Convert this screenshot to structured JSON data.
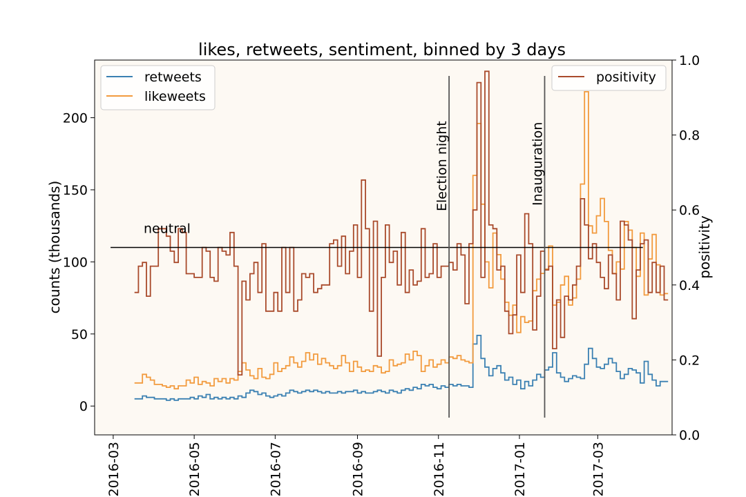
{
  "chart_data": {
    "type": "line",
    "title": "likes, retweets, sentiment, binned by 3 days",
    "ylabel": "counts (thousands)",
    "y2label": "positivity",
    "x_ticks": [
      "2016-03",
      "2016-05",
      "2016-07",
      "2016-09",
      "2016-11",
      "2017-01",
      "2017-03"
    ],
    "y_ticks": [
      "0",
      "50",
      "100",
      "150",
      "200"
    ],
    "y2_ticks": [
      "0.0",
      "0.2",
      "0.4",
      "0.6",
      "0.8",
      "1.0"
    ],
    "ylim": [
      -20,
      240
    ],
    "y2lim": [
      0.0,
      1.0
    ],
    "xlim": [
      "2016-02-16",
      "2017-04-26"
    ],
    "grid": false,
    "background": "#fdf9f3",
    "legend_left": {
      "position": "top-left",
      "entries": [
        "retweets",
        "likeweets"
      ]
    },
    "legend_right": {
      "position": "top-right",
      "entries": [
        "positivity"
      ]
    },
    "neutral_line": {
      "value": 0.5,
      "label": "neutral",
      "x_start": "2016-02-28",
      "x_end": "2017-04-04"
    },
    "events": [
      {
        "label": "Election night",
        "date": "2016-11-09"
      },
      {
        "label": "Inauguration",
        "date": "2017-01-20"
      }
    ],
    "x_start": "2016-03-17",
    "bin_days": 3,
    "series": [
      {
        "name": "retweets",
        "axis": "left",
        "color": "#3a80b2",
        "values": [
          5,
          5,
          7,
          6,
          6,
          5,
          5,
          5,
          4,
          5,
          4,
          5,
          5,
          5,
          6,
          5,
          7,
          6,
          8,
          5,
          6,
          5,
          6,
          5,
          6,
          5,
          7,
          6,
          9,
          11,
          10,
          8,
          9,
          7,
          6,
          7,
          8,
          7,
          9,
          11,
          10,
          9,
          10,
          11,
          10,
          11,
          10,
          9,
          10,
          9,
          9,
          10,
          9,
          10,
          10,
          11,
          9,
          10,
          9,
          9,
          10,
          11,
          10,
          9,
          11,
          10,
          9,
          11,
          12,
          11,
          13,
          12,
          15,
          14,
          15,
          13,
          12,
          14,
          13,
          15,
          14,
          15,
          14,
          14,
          13,
          43,
          49,
          33,
          27,
          21,
          26,
          28,
          23,
          18,
          20,
          15,
          18,
          12,
          17,
          14,
          18,
          22,
          20,
          25,
          27,
          37,
          23,
          20,
          17,
          19,
          21,
          20,
          19,
          29,
          40,
          33,
          27,
          26,
          29,
          33,
          30,
          24,
          19,
          22,
          26,
          25,
          23,
          16,
          31,
          22,
          18,
          14,
          17,
          17
        ]
      },
      {
        "name": "likeweets",
        "axis": "left",
        "color": "#f29a3d",
        "values": [
          16,
          16,
          22,
          20,
          18,
          15,
          15,
          14,
          13,
          14,
          12,
          14,
          14,
          18,
          16,
          20,
          15,
          17,
          16,
          14,
          19,
          17,
          19,
          16,
          19,
          18,
          24,
          30,
          25,
          21,
          19,
          26,
          20,
          19,
          22,
          30,
          24,
          26,
          28,
          34,
          30,
          27,
          31,
          37,
          32,
          36,
          29,
          33,
          30,
          28,
          26,
          28,
          35,
          30,
          24,
          31,
          27,
          24,
          25,
          24,
          28,
          27,
          23,
          24,
          32,
          28,
          29,
          30,
          36,
          32,
          38,
          35,
          24,
          28,
          32,
          27,
          29,
          32,
          30,
          34,
          33,
          35,
          32,
          31,
          30,
          160,
          196,
          140,
          100,
          82,
          120,
          105,
          88,
          72,
          63,
          70,
          51,
          62,
          58,
          59,
          80,
          88,
          92,
          95,
          111,
          70,
          72,
          84,
          90,
          70,
          75,
          88,
          154,
          218,
          125,
          120,
          132,
          144,
          128,
          108,
          92,
          100,
          95,
          128,
          122,
          110,
          90,
          120,
          77,
          102,
          119,
          98,
          77,
          78
        ]
      },
      {
        "name": "positivity",
        "axis": "right",
        "color": "#a94a2b",
        "values": [
          0.38,
          0.45,
          0.46,
          0.37,
          0.45,
          0.45,
          0.55,
          0.55,
          0.53,
          0.49,
          0.46,
          0.55,
          0.54,
          0.43,
          0.43,
          0.42,
          0.42,
          0.5,
          0.49,
          0.42,
          0.41,
          0.5,
          0.49,
          0.48,
          0.54,
          0.45,
          0.16,
          0.41,
          0.36,
          0.43,
          0.46,
          0.38,
          0.51,
          0.33,
          0.33,
          0.38,
          0.33,
          0.5,
          0.38,
          0.5,
          0.33,
          0.36,
          0.43,
          0.42,
          0.43,
          0.38,
          0.39,
          0.4,
          0.4,
          0.51,
          0.52,
          0.45,
          0.53,
          0.43,
          0.49,
          0.56,
          0.42,
          0.68,
          0.55,
          0.33,
          0.57,
          0.21,
          0.42,
          0.56,
          0.46,
          0.49,
          0.4,
          0.54,
          0.38,
          0.44,
          0.4,
          0.41,
          0.55,
          0.42,
          0.43,
          0.51,
          0.42,
          0.45,
          0.45,
          0.46,
          0.44,
          0.51,
          0.48,
          0.35,
          0.51,
          0.6,
          0.94,
          0.42,
          0.97,
          0.56,
          0.55,
          0.44,
          0.45,
          0.33,
          0.27,
          0.32,
          0.48,
          0.38,
          0.59,
          0.51,
          0.28,
          0.37,
          0.49,
          0.44,
          0.45,
          0.23,
          0.36,
          0.26,
          0.37,
          0.36,
          0.4,
          0.45,
          0.63,
          0.56,
          0.47,
          0.51,
          0.46,
          0.42,
          0.39,
          0.48,
          0.43,
          0.36,
          0.57,
          0.56,
          0.52,
          0.31,
          0.44,
          0.51,
          0.52,
          0.38,
          0.46,
          0.38,
          0.45,
          0.36
        ]
      }
    ]
  }
}
